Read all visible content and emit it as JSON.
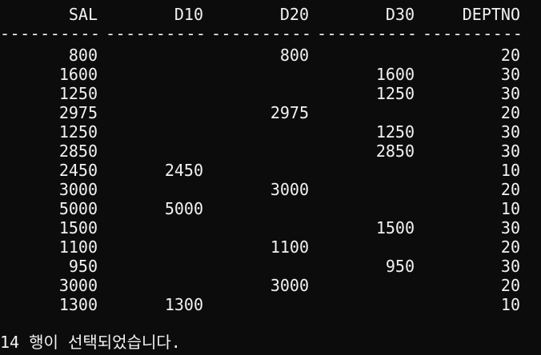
{
  "headers": [
    "SAL",
    "D10",
    "D20",
    "D30",
    "DEPTNO"
  ],
  "separator": "----------",
  "rows": [
    [
      "800",
      "",
      "800",
      "",
      "20"
    ],
    [
      "1600",
      "",
      "",
      "1600",
      "30"
    ],
    [
      "1250",
      "",
      "",
      "1250",
      "30"
    ],
    [
      "2975",
      "",
      "2975",
      "",
      "20"
    ],
    [
      "1250",
      "",
      "",
      "1250",
      "30"
    ],
    [
      "2850",
      "",
      "",
      "2850",
      "30"
    ],
    [
      "2450",
      "2450",
      "",
      "",
      "10"
    ],
    [
      "3000",
      "",
      "3000",
      "",
      "20"
    ],
    [
      "5000",
      "5000",
      "",
      "",
      "10"
    ],
    [
      "1500",
      "",
      "",
      "1500",
      "30"
    ],
    [
      "1100",
      "",
      "1100",
      "",
      "20"
    ],
    [
      "950",
      "",
      "",
      "950",
      "30"
    ],
    [
      "3000",
      "",
      "3000",
      "",
      "20"
    ],
    [
      "1300",
      "1300",
      "",
      "",
      "10"
    ]
  ],
  "footer": "14 행이 선택되었습니다."
}
